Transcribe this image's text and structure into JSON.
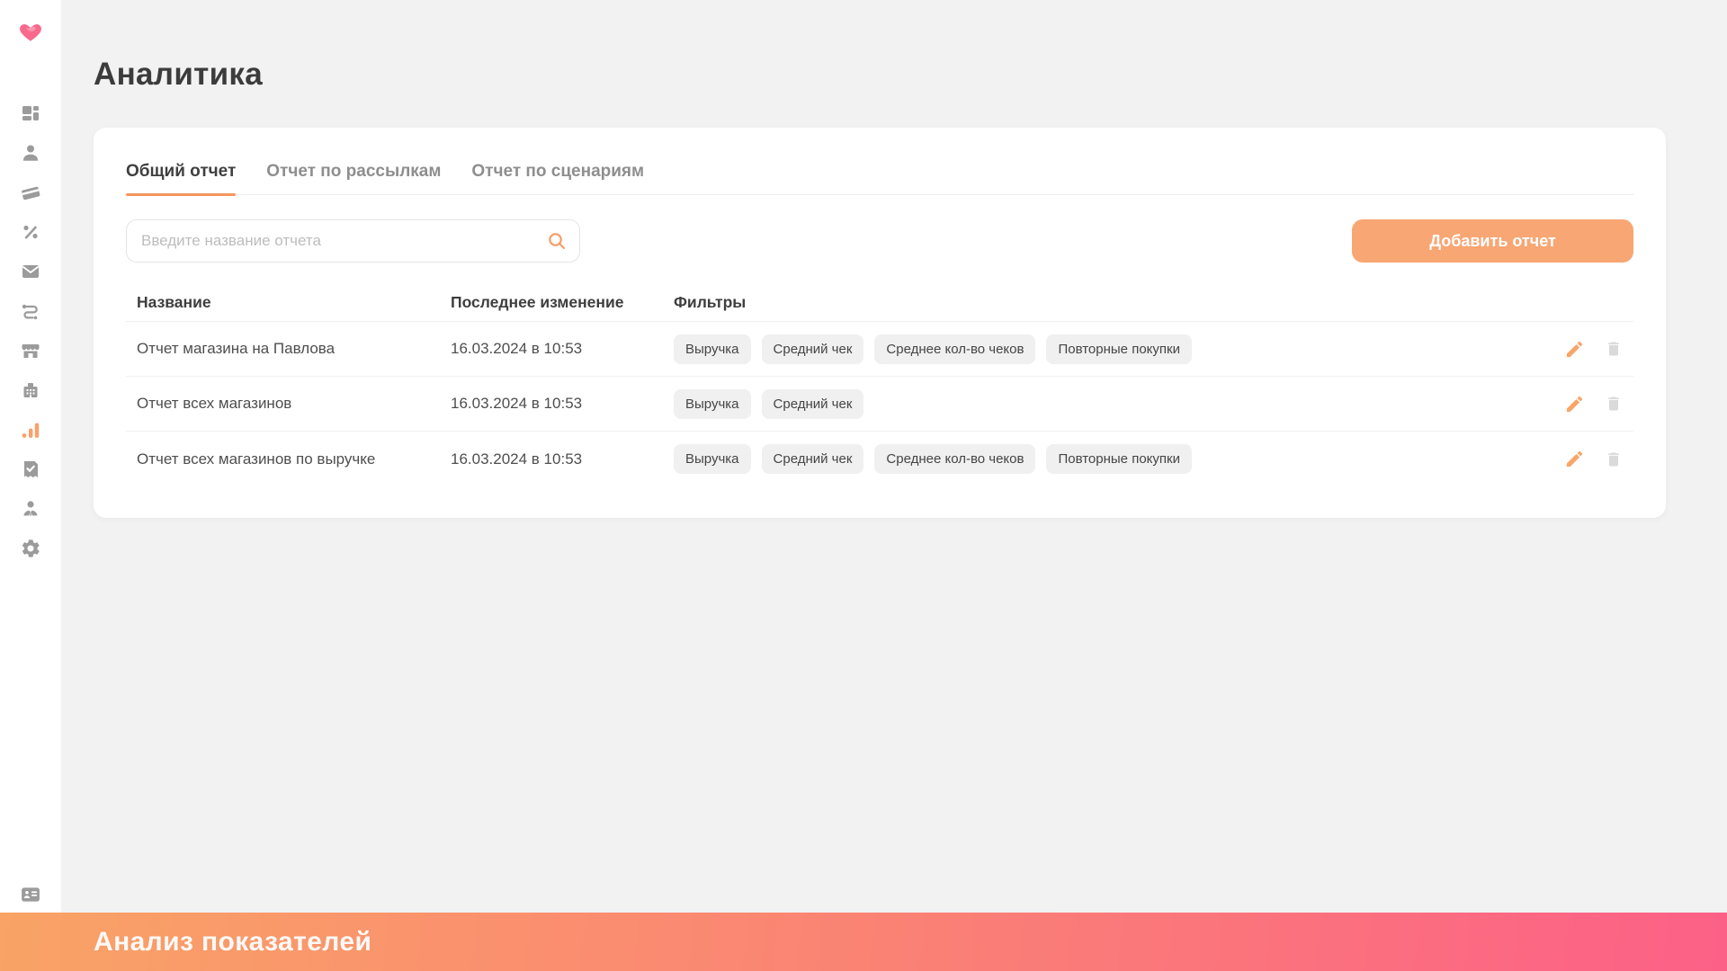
{
  "page": {
    "title": "Аналитика",
    "background": "#F2F2F2"
  },
  "sidebar": {
    "logo_icon": "heart-icon",
    "items": [
      {
        "icon": "dashboard-icon",
        "active": false
      },
      {
        "icon": "user-icon",
        "active": false
      },
      {
        "icon": "credit-card-icon",
        "active": false
      },
      {
        "icon": "percent-icon",
        "active": false
      },
      {
        "icon": "mail-icon",
        "active": false
      },
      {
        "icon": "route-icon",
        "active": false
      },
      {
        "icon": "store-icon",
        "active": false
      },
      {
        "icon": "building-icon",
        "active": false
      },
      {
        "icon": "bar-chart-icon",
        "active": true
      },
      {
        "icon": "receipt-check-icon",
        "active": false
      },
      {
        "icon": "person-tie-icon",
        "active": false
      },
      {
        "icon": "gear-icon",
        "active": false
      }
    ],
    "bottom_icon": "id-card-icon"
  },
  "tabs": [
    {
      "label": "Общий отчет",
      "active": true
    },
    {
      "label": "Отчет по рассылкам",
      "active": false
    },
    {
      "label": "Отчет по сценариям",
      "active": false
    }
  ],
  "search": {
    "placeholder": "Введите название отчета",
    "value": ""
  },
  "actions": {
    "add_report": "Добавить отчет"
  },
  "table": {
    "columns": [
      "Название",
      "Последнее изменение",
      "Фильтры"
    ],
    "rows": [
      {
        "name": "Отчет магазина на Павлова",
        "modified": "16.03.2024 в 10:53",
        "filters": [
          "Выручка",
          "Средний чек",
          "Среднее кол-во чеков",
          "Повторные покупки"
        ]
      },
      {
        "name": "Отчет всех магазинов",
        "modified": "16.03.2024 в 10:53",
        "filters": [
          "Выручка",
          "Средний чек"
        ]
      },
      {
        "name": "Отчет всех магазинов по выручке",
        "modified": "16.03.2024 в 10:53",
        "filters": [
          "Выручка",
          "Средний чек",
          "Среднее кол-во чеков",
          "Повторные покупки"
        ]
      }
    ]
  },
  "footer": {
    "banner_text": "Анализ показателей"
  },
  "colors": {
    "accent_orange": "#F8A673",
    "underline_orange": "#F6955E",
    "icon_active_orange": "#FBA06B",
    "logo_pink": "#F9698C",
    "gradient_left": "#F9A366",
    "gradient_right": "#FC6087",
    "chip_bg": "#F0F0F0",
    "icon_gray": "#9B9B9B"
  }
}
